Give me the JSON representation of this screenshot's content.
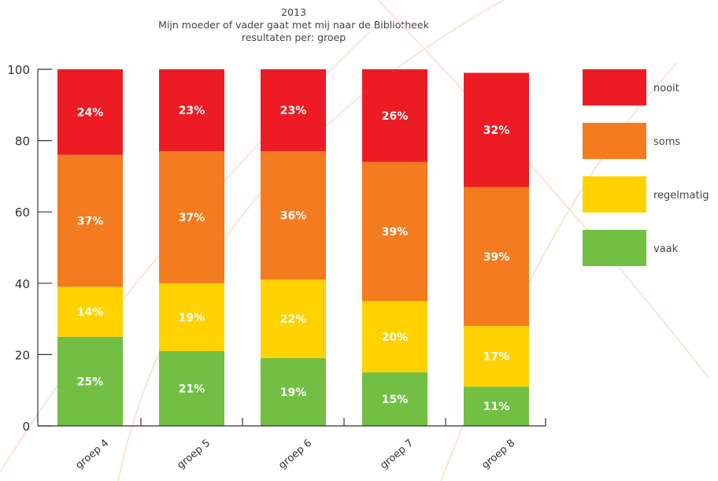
{
  "chart_data": {
    "type": "bar",
    "stacked": true,
    "title": "2013",
    "subtitle": "Mijn moeder of vader gaat met mij naar de Bibliotheek",
    "subtitle2": "resultaten per: groep",
    "categories": [
      "groep 4",
      "groep 5",
      "groep 6",
      "groep 7",
      "groep 8"
    ],
    "ylim": [
      0,
      100
    ],
    "yticks": [
      "0",
      "20",
      "40",
      "60",
      "80",
      "100"
    ],
    "yticks_values": [
      0,
      20,
      40,
      60,
      80,
      100
    ],
    "legend_position": "right",
    "grid": false,
    "series": [
      {
        "name": "vaak",
        "color": "#72bf44",
        "values": [
          25,
          21,
          19,
          15,
          11
        ],
        "labels": [
          "25%",
          "21%",
          "19%",
          "15%",
          "11%"
        ]
      },
      {
        "name": "regelmatig",
        "color": "#ffd200",
        "values": [
          14,
          19,
          22,
          20,
          17
        ],
        "labels": [
          "14%",
          "19%",
          "22%",
          "20%",
          "17%"
        ]
      },
      {
        "name": "soms",
        "color": "#f47b20",
        "values": [
          37,
          37,
          36,
          39,
          39
        ],
        "labels": [
          "37%",
          "37%",
          "36%",
          "39%",
          "39%"
        ]
      },
      {
        "name": "nooit",
        "color": "#ed1c24",
        "values": [
          24,
          23,
          23,
          26,
          32
        ],
        "labels": [
          "24%",
          "23%",
          "23%",
          "26%",
          "32%"
        ]
      }
    ]
  }
}
